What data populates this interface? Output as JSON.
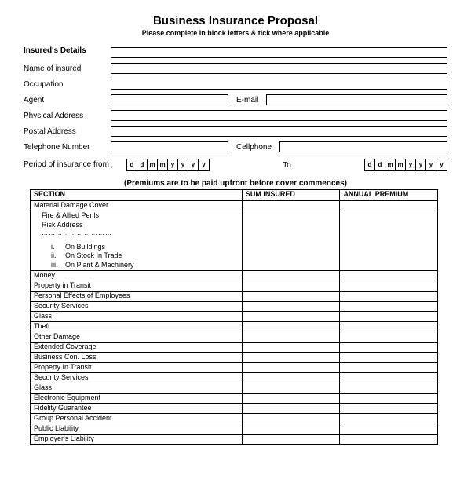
{
  "title": "Business Insurance Proposal",
  "subtitle": "Please complete in block letters & tick where applicable",
  "details_heading": "Insured's Details",
  "labels": {
    "name": "Name of insured",
    "occupation": "Occupation",
    "agent": "Agent",
    "email": "E-mail",
    "physical": "Physical Address",
    "postal": "Postal Address",
    "telephone": "Telephone Number",
    "cellphone": "Cellphone",
    "period": "Period of insurance from",
    "to": "To"
  },
  "date_placeholder": [
    "d",
    "d",
    "m",
    "m",
    "y",
    "y",
    "y",
    "y"
  ],
  "premiums_note": "(Premiums are to be paid upfront before cover commences)",
  "table": {
    "headers": {
      "section": "SECTION",
      "sum": "SUM INSURED",
      "premium": "ANNUAL PREMIUM"
    },
    "first_row": "Material Damage Cover",
    "tall": {
      "line1": "Fire & Allied Perils",
      "line2": "Risk Address",
      "dots": "…………………………",
      "items": [
        {
          "roman": "i.",
          "text": "On Buildings"
        },
        {
          "roman": "ii.",
          "text": "On Stock In Trade"
        },
        {
          "roman": "iii.",
          "text": "On Plant & Machinery"
        }
      ]
    },
    "rows": [
      "Money",
      "Property in Transit",
      "Personal Effects of Employees",
      "Security Services",
      "Glass",
      "Theft",
      "Other Damage",
      "Extended Coverage",
      "Business Con. Loss",
      "Property In Transit",
      "Security Services",
      "Glass",
      "Electronic Equipment",
      "Fidelity Guarantee",
      "Group Personal Accident",
      "Public Liability",
      "Employer's Liability"
    ]
  },
  "colors": {
    "text": "#000000",
    "bg": "#ffffff",
    "border": "#000000"
  }
}
